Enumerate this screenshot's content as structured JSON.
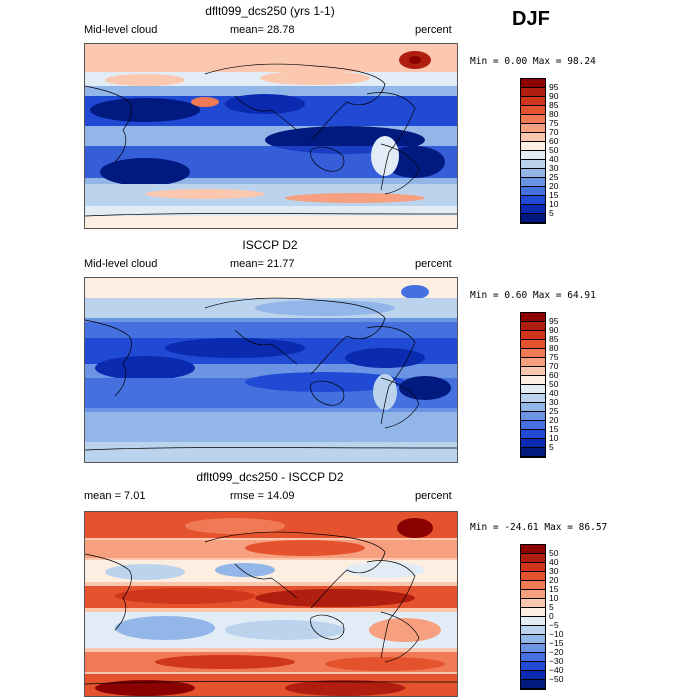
{
  "season": "DJF",
  "panels": [
    {
      "title": "dflt099_dcs250 (yrs 1-1)",
      "left_label": "Mid-level cloud",
      "center_label": "mean=  28.78",
      "right_label": "percent",
      "minmax": "Min =   0.00 Max =  98.24"
    },
    {
      "title": "ISCCP D2",
      "left_label": "Mid-level cloud",
      "center_label": "mean=  21.77",
      "right_label": "percent",
      "minmax": "Min =   0.60 Max =  64.91"
    },
    {
      "title": "dflt099_dcs250 - ISCCP D2",
      "left_label": "mean =   7.01",
      "center_label": "rmse =  14.09",
      "right_label": "percent",
      "minmax": "Min = -24.61 Max =  86.57"
    }
  ],
  "colorbars": {
    "abs": {
      "labels": [
        "95",
        "90",
        "85",
        "80",
        "75",
        "70",
        "60",
        "50",
        "40",
        "30",
        "25",
        "20",
        "15",
        "10",
        "5"
      ],
      "colors": [
        "#8b0000",
        "#b01e10",
        "#d0361c",
        "#e5532e",
        "#f07a55",
        "#f6a080",
        "#fbc7ae",
        "#fdeee2",
        "#e2ecf7",
        "#bcd3ee",
        "#93b6e8",
        "#6b95e4",
        "#4470e0",
        "#2049d4",
        "#0a2bb0",
        "#001a80"
      ]
    },
    "diff": {
      "labels": [
        "50",
        "40",
        "30",
        "20",
        "15",
        "10",
        "5",
        "0",
        "−5",
        "−10",
        "−15",
        "−20",
        "−30",
        "−40",
        "−50"
      ],
      "colors": [
        "#8b0000",
        "#b01e10",
        "#d0361c",
        "#e5532e",
        "#f07a55",
        "#f6a080",
        "#fbc7ae",
        "#fdeee2",
        "#e2ecf7",
        "#bcd3ee",
        "#93b6e8",
        "#6b95e4",
        "#4470e0",
        "#2049d4",
        "#0a2bb0",
        "#001a80"
      ]
    }
  },
  "chart_data": [
    {
      "type": "heatmap",
      "title": "dflt099_dcs250 (yrs 1-1)",
      "variable": "Mid-level cloud",
      "units": "percent",
      "mean": 28.78,
      "min": 0.0,
      "max": 98.24,
      "season": "DJF",
      "colorbar_levels": [
        5,
        10,
        15,
        20,
        25,
        30,
        40,
        50,
        60,
        70,
        75,
        80,
        85,
        90,
        95
      ],
      "grid": "global lat-lon map (cylindrical equidistant)"
    },
    {
      "type": "heatmap",
      "title": "ISCCP D2",
      "variable": "Mid-level cloud",
      "units": "percent",
      "mean": 21.77,
      "min": 0.6,
      "max": 64.91,
      "season": "DJF",
      "colorbar_levels": [
        5,
        10,
        15,
        20,
        25,
        30,
        40,
        50,
        60,
        70,
        75,
        80,
        85,
        90,
        95
      ],
      "grid": "global lat-lon map (cylindrical equidistant)"
    },
    {
      "type": "heatmap",
      "title": "dflt099_dcs250 - ISCCP D2",
      "units": "percent",
      "mean": 7.01,
      "rmse": 14.09,
      "min": -24.61,
      "max": 86.57,
      "season": "DJF",
      "colorbar_levels": [
        -50,
        -40,
        -30,
        -20,
        -15,
        -10,
        -5,
        0,
        5,
        10,
        15,
        20,
        30,
        40,
        50
      ],
      "grid": "global lat-lon map (cylindrical equidistant)"
    }
  ]
}
